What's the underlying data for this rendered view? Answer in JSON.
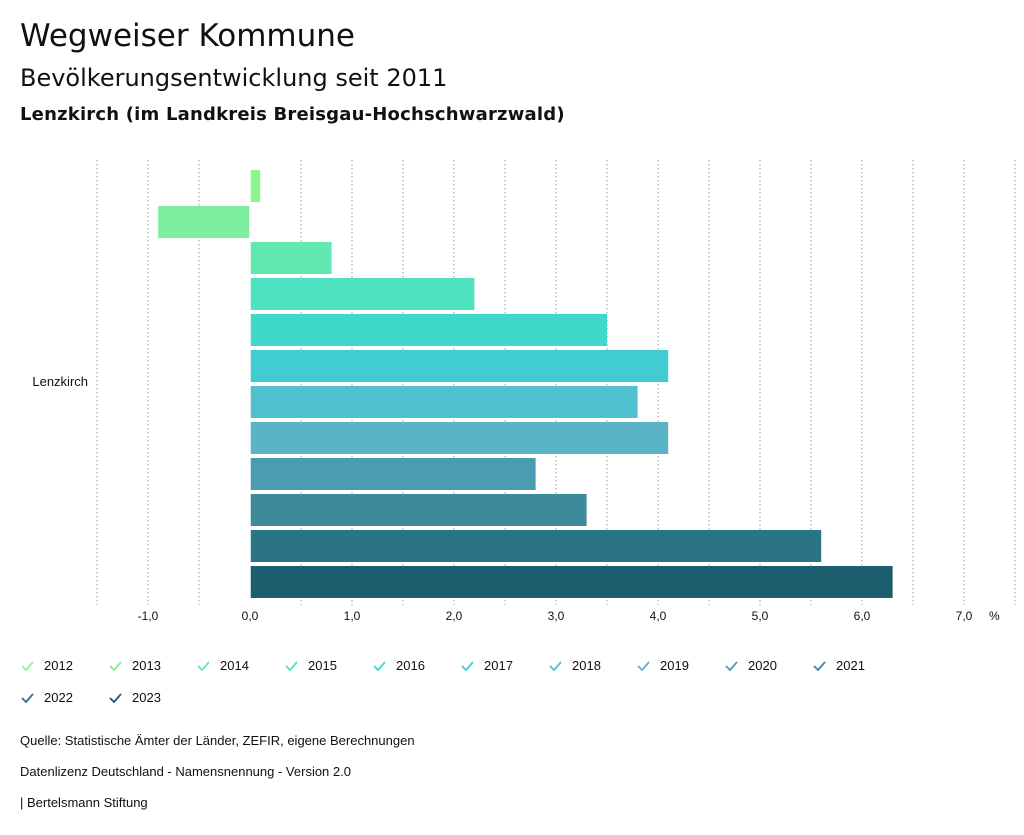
{
  "header": {
    "title": "Wegweiser Kommune",
    "subtitle": "Bevölkerungsentwicklung seit 2011",
    "region": "Lenzkirch (im Landkreis Breisgau-Hochschwarzwald)"
  },
  "chart_data": {
    "type": "bar",
    "orientation": "horizontal",
    "categories": [
      "Lenzkirch"
    ],
    "unit": "%",
    "xlim": [
      -1.5,
      7.5
    ],
    "xticks": [
      -1.0,
      0.0,
      1.0,
      2.0,
      3.0,
      4.0,
      5.0,
      6.0,
      7.0
    ],
    "xtick_labels": [
      "-1,0",
      "0,0",
      "1,0",
      "2,0",
      "3,0",
      "4,0",
      "5,0",
      "6,0",
      "7,0"
    ],
    "grid": "vertical-dotted",
    "series": [
      {
        "name": "2012",
        "values": [
          0.1
        ],
        "color": "#8cf58c"
      },
      {
        "name": "2013",
        "values": [
          -0.9
        ],
        "color": "#7deea0"
      },
      {
        "name": "2014",
        "values": [
          0.8
        ],
        "color": "#62e8b0"
      },
      {
        "name": "2015",
        "values": [
          2.2
        ],
        "color": "#4fe2c0"
      },
      {
        "name": "2016",
        "values": [
          3.5
        ],
        "color": "#40d8c8"
      },
      {
        "name": "2017",
        "values": [
          4.1
        ],
        "color": "#40ccd0"
      },
      {
        "name": "2018",
        "values": [
          3.8
        ],
        "color": "#4ec0ce"
      },
      {
        "name": "2019",
        "values": [
          4.1
        ],
        "color": "#5ab4c6"
      },
      {
        "name": "2020",
        "values": [
          2.8
        ],
        "color": "#4a9db0"
      },
      {
        "name": "2021",
        "values": [
          3.3
        ],
        "color": "#3c8a9c"
      },
      {
        "name": "2022",
        "values": [
          5.6
        ],
        "color": "#2a7485"
      },
      {
        "name": "2023",
        "values": [
          6.3
        ],
        "color": "#1b5e6e"
      }
    ]
  },
  "footer": {
    "source": "Quelle: Statistische Ämter der Länder, ZEFIR, eigene Berechnungen",
    "license": "Datenlizenz Deutschland - Namensnennung - Version 2.0",
    "brand": "| Bertelsmann Stiftung"
  }
}
